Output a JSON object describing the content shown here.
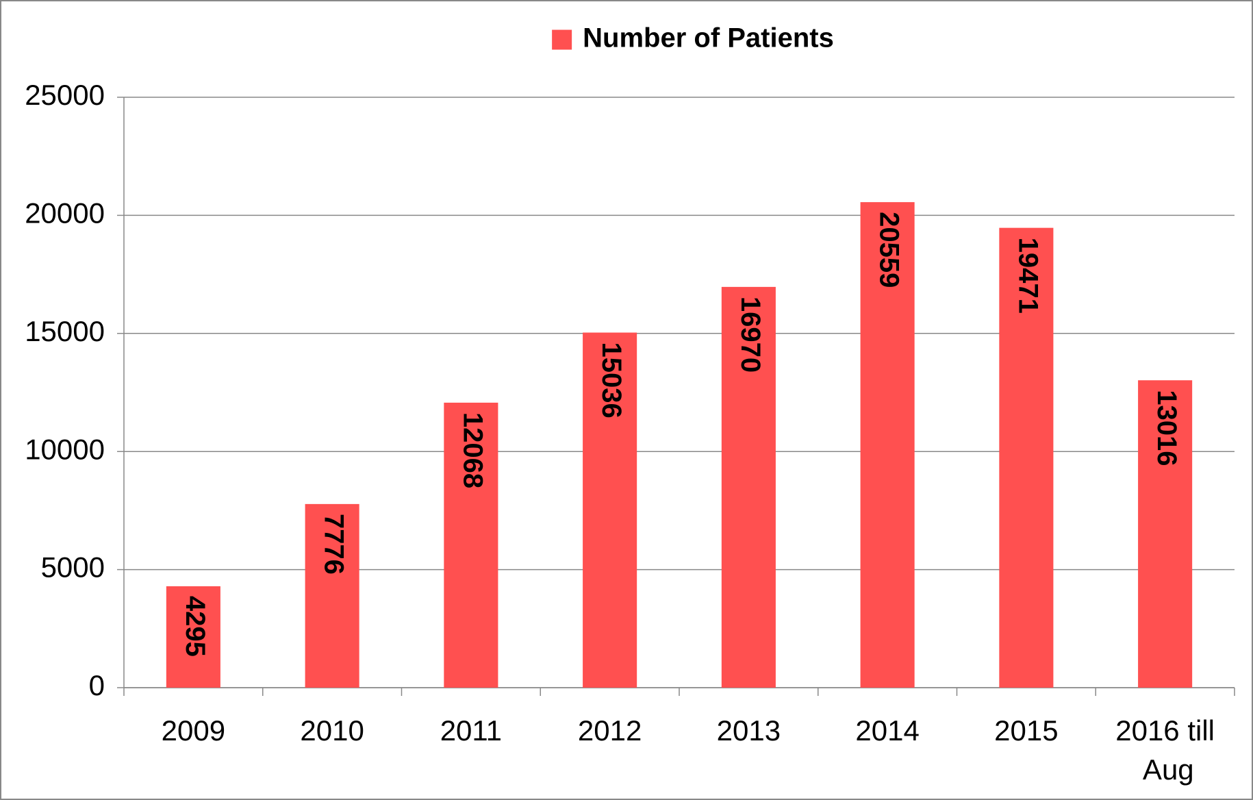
{
  "chart_data": {
    "type": "bar",
    "categories": [
      "2009",
      "2010",
      "2011",
      "2012",
      "2013",
      "2014",
      "2015",
      "2016 till Aug"
    ],
    "series": [
      {
        "name": "Number of Patients",
        "color": "#ff5050",
        "values": [
          4295,
          7776,
          12068,
          15036,
          16970,
          20559,
          19471,
          13016
        ]
      }
    ],
    "ylim": [
      0,
      25000
    ],
    "yticks": [
      0,
      5000,
      10000,
      15000,
      20000,
      25000
    ],
    "grid": true,
    "legend": "top"
  }
}
